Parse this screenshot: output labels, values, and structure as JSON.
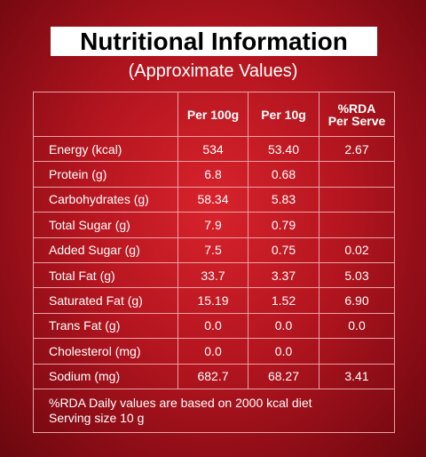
{
  "header": {
    "title": "Nutritional Information",
    "subtitle": "(Approximate Values)"
  },
  "table": {
    "columns": [
      [
        "Per 100g"
      ],
      [
        "Per 10g"
      ],
      [
        "%RDA",
        "Per Serve"
      ]
    ],
    "rows": [
      [
        "Energy (kcal)",
        "534",
        "53.40",
        "2.67"
      ],
      [
        "Protein (g)",
        "6.8",
        "0.68",
        null
      ],
      [
        "Carbohydrates (g)",
        "58.34",
        "5.83",
        null
      ],
      [
        "Total Sugar (g)",
        "7.9",
        "0.79",
        null
      ],
      [
        "Added Sugar (g)",
        "7.5",
        "0.75",
        "0.02"
      ],
      [
        "Total Fat (g)",
        "33.7",
        "3.37",
        "5.03"
      ],
      [
        "Saturated Fat (g)",
        "15.19",
        "1.52",
        "6.90"
      ],
      [
        "Trans Fat (g)",
        "0.0",
        "0.0",
        "0.0"
      ],
      [
        "Cholesterol (mg)",
        "0.0",
        "0.0",
        null
      ],
      [
        "Sodium (mg)",
        "682.7",
        "68.27",
        "3.41"
      ]
    ],
    "notes": [
      "%RDA Daily values are based on 2000 kcal diet",
      "Serving size 10 g"
    ]
  }
}
